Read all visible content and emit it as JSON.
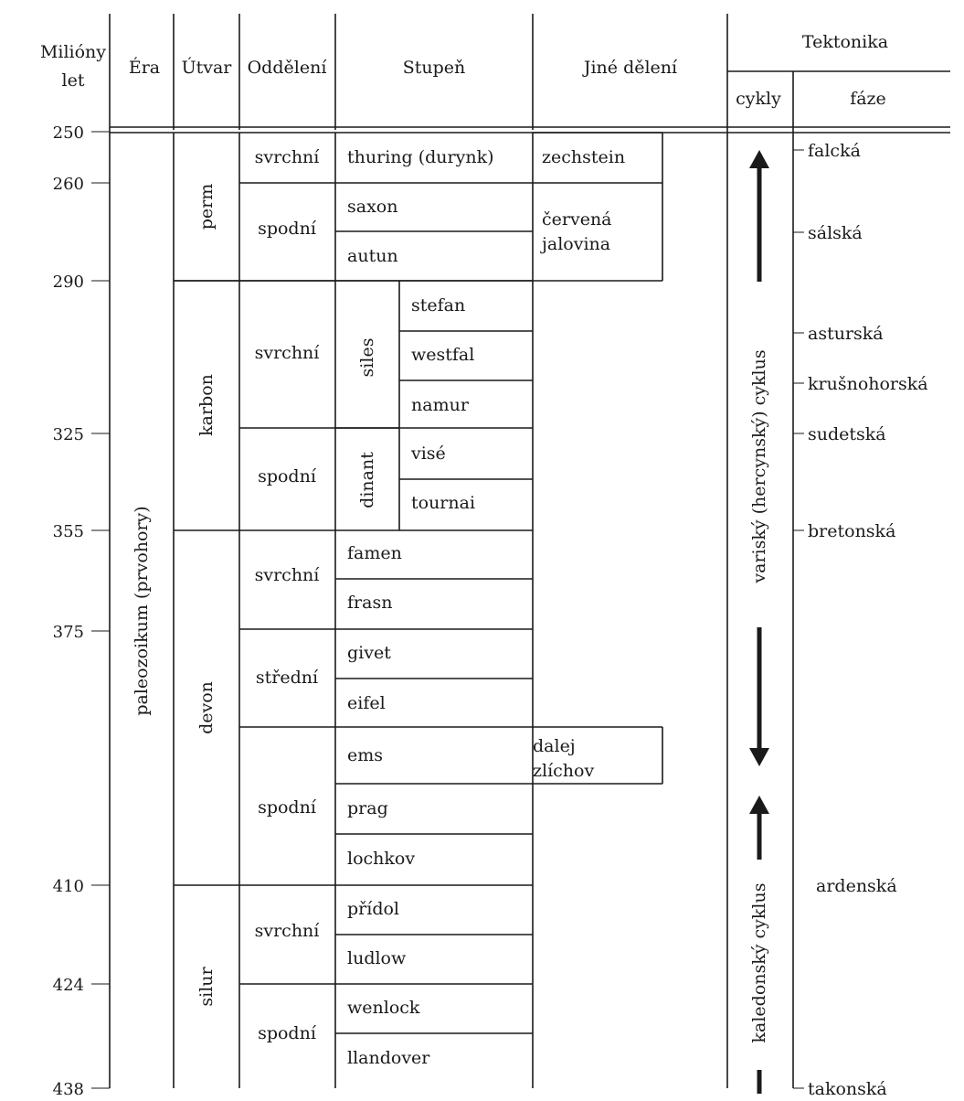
{
  "header": {
    "miliony_let": [
      "Milióny",
      "let"
    ],
    "era": "Éra",
    "utvar": "Útvar",
    "oddeleni": "Oddělení",
    "stupen": "Stupeň",
    "jine_deleni": "Jiné dělení",
    "tektonika": "Tektonika",
    "cykly": "cykly",
    "faze": "fáze"
  },
  "time_scale": [
    {
      "ma": "250"
    },
    {
      "ma": "260"
    },
    {
      "ma": "290"
    },
    {
      "ma": "325"
    },
    {
      "ma": "355"
    },
    {
      "ma": "375"
    },
    {
      "ma": "410"
    },
    {
      "ma": "424"
    },
    {
      "ma": "438"
    }
  ],
  "era": "paleozoikum (prvohory)",
  "utvary": [
    {
      "label": "perm"
    },
    {
      "label": "karbon"
    },
    {
      "label": "devon"
    },
    {
      "label": "silur"
    }
  ],
  "oddeleni": [
    {
      "label": "svrchní"
    },
    {
      "label": "spodní"
    },
    {
      "label": "svrchní"
    },
    {
      "label": "spodní"
    },
    {
      "label": "svrchní"
    },
    {
      "label": "střední"
    },
    {
      "label": "spodní"
    },
    {
      "label": "svrchní"
    },
    {
      "label": "spodní"
    }
  ],
  "pododdeleni": [
    {
      "label": "siles"
    },
    {
      "label": "dinant"
    }
  ],
  "stupne": [
    {
      "label": "thuring (durynk)"
    },
    {
      "label": "saxon"
    },
    {
      "label": "autun"
    },
    {
      "label": "stefan"
    },
    {
      "label": "westfal"
    },
    {
      "label": "namur"
    },
    {
      "label": "visé"
    },
    {
      "label": "tournai"
    },
    {
      "label": "famen"
    },
    {
      "label": "frasn"
    },
    {
      "label": "givet"
    },
    {
      "label": "eifel"
    },
    {
      "label": "ems"
    },
    {
      "label": "prag"
    },
    {
      "label": "lochkov"
    },
    {
      "label": "přídol"
    },
    {
      "label": "ludlow"
    },
    {
      "label": "wenlock"
    },
    {
      "label": "llandover"
    }
  ],
  "jine_deleni": [
    {
      "lines": [
        "zechstein"
      ]
    },
    {
      "lines": [
        "červená",
        "jalovina"
      ]
    },
    {
      "lines": [
        "dalej",
        "zlíchov"
      ]
    }
  ],
  "cykly": [
    {
      "label": "variský (hercynský) cyklus"
    },
    {
      "label": "kaledonský cyklus"
    }
  ],
  "faze": [
    {
      "label": "falcká"
    },
    {
      "label": "sálská"
    },
    {
      "label": "asturská"
    },
    {
      "label": "krušnohorská"
    },
    {
      "label": "sudetská"
    },
    {
      "label": "bretonská"
    },
    {
      "label": "ardenská"
    },
    {
      "label": "takonská"
    }
  ]
}
